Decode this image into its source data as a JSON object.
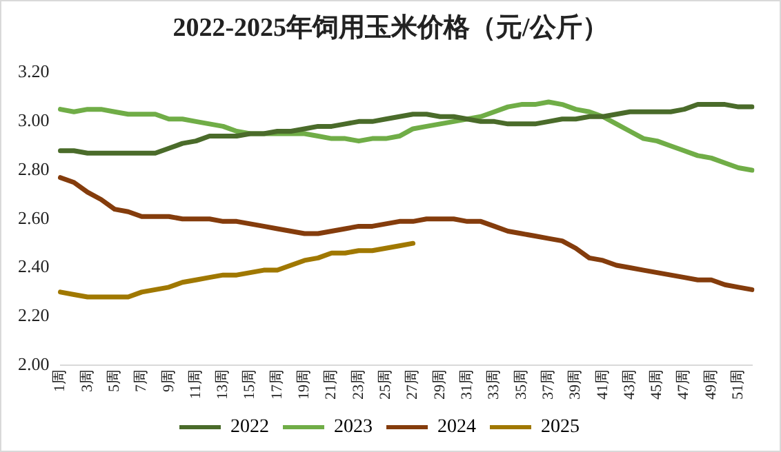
{
  "chart_data": {
    "type": "line",
    "title": "2022-2025年饲用玉米价格（元/公斤）",
    "categories": [
      "1周",
      null,
      "3周",
      null,
      "5周",
      null,
      "7周",
      null,
      "9周",
      null,
      "11周",
      null,
      "13周",
      null,
      "15周",
      null,
      "17周",
      null,
      "19周",
      null,
      "21周",
      null,
      "23周",
      null,
      "25周",
      null,
      "27周",
      null,
      "29周",
      null,
      "31周",
      null,
      "33周",
      null,
      "35周",
      null,
      "37周",
      null,
      "39周",
      null,
      "41周",
      null,
      "43周",
      null,
      "45周",
      null,
      "47周",
      null,
      "49周",
      null,
      "51周",
      null
    ],
    "series": [
      {
        "name": "2022",
        "color": "#4a6b2a",
        "values": [
          2.88,
          2.88,
          2.87,
          2.87,
          2.87,
          2.87,
          2.87,
          2.87,
          2.89,
          2.91,
          2.92,
          2.94,
          2.94,
          2.94,
          2.95,
          2.95,
          2.96,
          2.96,
          2.97,
          2.98,
          2.98,
          2.99,
          3.0,
          3.0,
          3.01,
          3.02,
          3.03,
          3.03,
          3.02,
          3.02,
          3.01,
          3.0,
          3.0,
          2.99,
          2.99,
          2.99,
          3.0,
          3.01,
          3.01,
          3.02,
          3.02,
          3.03,
          3.04,
          3.04,
          3.04,
          3.04,
          3.05,
          3.07,
          3.07,
          3.07,
          3.06,
          3.06
        ]
      },
      {
        "name": "2023",
        "color": "#70ad47",
        "values": [
          3.05,
          3.04,
          3.05,
          3.05,
          3.04,
          3.03,
          3.03,
          3.03,
          3.01,
          3.01,
          3.0,
          2.99,
          2.98,
          2.96,
          2.95,
          2.95,
          2.95,
          2.95,
          2.95,
          2.94,
          2.93,
          2.93,
          2.92,
          2.93,
          2.93,
          2.94,
          2.97,
          2.98,
          2.99,
          3.0,
          3.01,
          3.02,
          3.04,
          3.06,
          3.07,
          3.07,
          3.08,
          3.07,
          3.05,
          3.04,
          3.02,
          2.99,
          2.96,
          2.93,
          2.92,
          2.9,
          2.88,
          2.86,
          2.85,
          2.83,
          2.81,
          2.8
        ]
      },
      {
        "name": "2024",
        "color": "#843c0c",
        "values": [
          2.77,
          2.75,
          2.71,
          2.68,
          2.64,
          2.63,
          2.61,
          2.61,
          2.61,
          2.6,
          2.6,
          2.6,
          2.59,
          2.59,
          2.58,
          2.57,
          2.56,
          2.55,
          2.54,
          2.54,
          2.55,
          2.56,
          2.57,
          2.57,
          2.58,
          2.59,
          2.59,
          2.6,
          2.6,
          2.6,
          2.59,
          2.59,
          2.57,
          2.55,
          2.54,
          2.53,
          2.52,
          2.51,
          2.48,
          2.44,
          2.43,
          2.41,
          2.4,
          2.39,
          2.38,
          2.37,
          2.36,
          2.35,
          2.35,
          2.33,
          2.32,
          2.31
        ]
      },
      {
        "name": "2025",
        "color": "#a07800",
        "values": [
          2.3,
          2.29,
          2.28,
          2.28,
          2.28,
          2.28,
          2.3,
          2.31,
          2.32,
          2.34,
          2.35,
          2.36,
          2.37,
          2.37,
          2.38,
          2.39,
          2.39,
          2.41,
          2.43,
          2.44,
          2.46,
          2.46,
          2.47,
          2.47,
          2.48,
          2.49,
          2.5,
          null,
          null,
          null,
          null,
          null,
          null,
          null,
          null,
          null,
          null,
          null,
          null,
          null,
          null,
          null,
          null,
          null,
          null,
          null,
          null,
          null,
          null,
          null,
          null,
          null
        ]
      }
    ],
    "ylim": [
      2.0,
      3.2
    ],
    "yticks": [
      {
        "value": 2.0,
        "label": "2.00"
      },
      {
        "value": 2.2,
        "label": "2.20"
      },
      {
        "value": 2.4,
        "label": "2.40"
      },
      {
        "value": 2.6,
        "label": "2.60"
      },
      {
        "value": 2.8,
        "label": "2.80"
      },
      {
        "value": 3.0,
        "label": "3.00"
      },
      {
        "value": 3.2,
        "label": "3.20"
      }
    ],
    "grid": false,
    "legend": "bottom",
    "marker": "none",
    "line_style": "solid"
  }
}
